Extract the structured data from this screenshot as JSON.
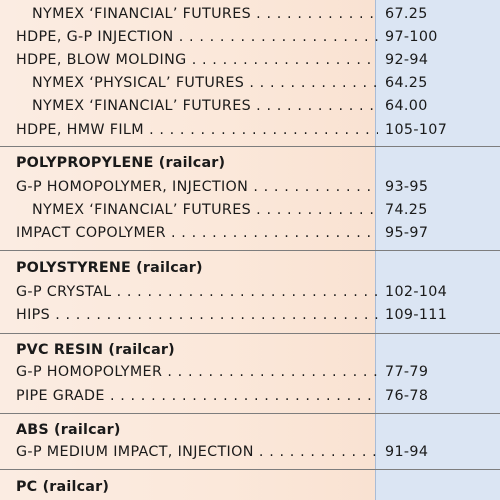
{
  "blocks": [
    {
      "rows": [
        {
          "name": "NYMEX ‘FINANCIAL’ FUTURES",
          "price": "67.25",
          "indent": true
        },
        {
          "name": "HDPE, G-P INJECTION",
          "price": "97-100",
          "indent": false
        },
        {
          "name": "HDPE, BLOW MOLDING",
          "price": "92-94",
          "indent": false
        },
        {
          "name": "NYMEX ‘PHYSICAL’ FUTURES",
          "price": "64.25",
          "indent": true
        },
        {
          "name": "NYMEX ‘FINANCIAL’ FUTURES",
          "price": "64.00",
          "indent": true
        },
        {
          "name": "HDPE, HMW FILM",
          "price": "105-107",
          "indent": false
        }
      ]
    },
    {
      "section": "POLYPROPYLENE",
      "qualifier": "(railcar)",
      "rows": [
        {
          "name": "G-P HOMOPOLYMER, INJECTION",
          "price": "93-95",
          "indent": false
        },
        {
          "name": "NYMEX ‘FINANCIAL’ FUTURES",
          "price": "74.25",
          "indent": true
        },
        {
          "name": "IMPACT COPOLYMER",
          "price": "95-97",
          "indent": false
        }
      ]
    },
    {
      "section": "POLYSTYRENE",
      "qualifier": "(railcar)",
      "rows": [
        {
          "name": "G-P CRYSTAL",
          "price": "102-104",
          "indent": false
        },
        {
          "name": "HIPS",
          "price": "109-111",
          "indent": false
        }
      ]
    },
    {
      "section": "PVC RESIN",
      "qualifier": "(railcar)",
      "rows": [
        {
          "name": "G-P HOMOPOLYMER",
          "price": "77-79",
          "indent": false
        },
        {
          "name": "PIPE GRADE",
          "price": "76-78",
          "indent": false
        }
      ]
    },
    {
      "section": "ABS",
      "qualifier": "(railcar)",
      "rows": [
        {
          "name": "G-P MEDIUM IMPACT, INJECTION",
          "price": "91-94",
          "indent": false
        }
      ]
    },
    {
      "section": "PC",
      "qualifier": "(railcar)",
      "rows": []
    }
  ]
}
